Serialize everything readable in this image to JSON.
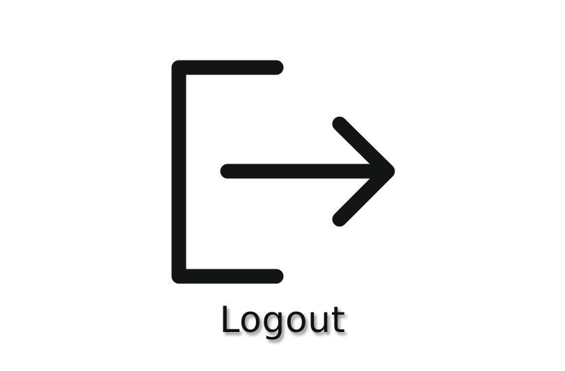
{
  "logout": {
    "label": "Logout",
    "icon": "logout-icon",
    "color": "#131514"
  }
}
